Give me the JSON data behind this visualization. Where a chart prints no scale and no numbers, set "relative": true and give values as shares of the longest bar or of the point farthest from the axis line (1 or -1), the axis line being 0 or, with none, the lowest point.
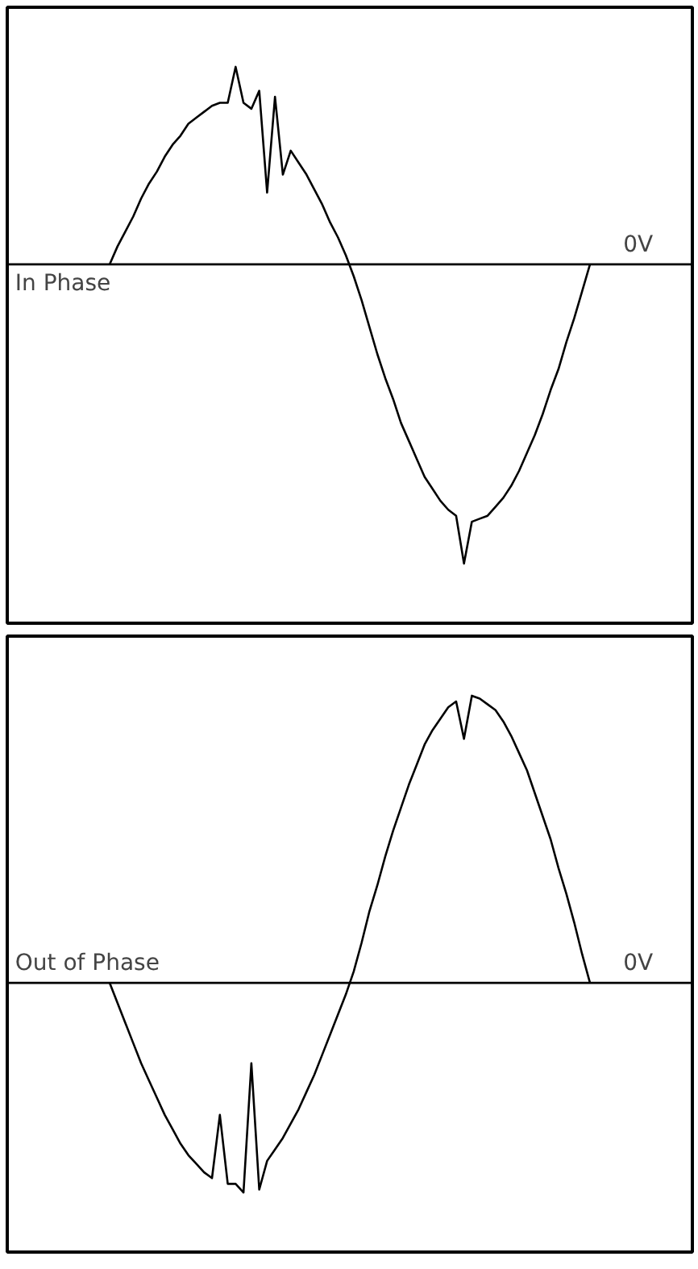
{
  "chart_data": [
    {
      "type": "line",
      "relative": true,
      "color": "#000000",
      "categories": [
        null,
        null,
        null,
        null,
        null,
        null,
        null,
        null,
        null,
        null,
        null,
        null,
        null,
        null,
        null,
        null,
        null,
        null,
        null,
        null,
        null,
        null,
        null,
        null,
        null,
        null,
        null,
        null,
        null,
        null,
        null,
        null,
        null,
        null,
        null,
        null,
        null,
        null,
        null,
        null,
        null,
        null,
        null,
        null,
        null,
        null,
        null,
        null,
        null,
        null,
        null,
        null,
        null,
        null,
        null,
        null,
        null,
        null,
        null,
        null,
        null,
        null,
        null,
        null,
        null,
        null,
        null,
        null,
        null,
        null,
        null,
        null,
        null,
        null,
        null,
        null,
        null,
        null,
        null,
        null,
        null,
        null,
        null
      ],
      "values": [
        null,
        null,
        null,
        null,
        null,
        null,
        null,
        null,
        null,
        null,
        0,
        0.06,
        0.11,
        0.16,
        0.22,
        0.27,
        0.31,
        0.36,
        0.4,
        0.43,
        0.47,
        0.49,
        0.51,
        0.53,
        0.54,
        0.54,
        0.66,
        0.54,
        0.52,
        0.58,
        0.24,
        0.56,
        0.3,
        0.38,
        0.34,
        0.3,
        0.25,
        0.2,
        0.14,
        0.09,
        0.03,
        -0.04,
        -0.12,
        -0.21,
        -0.3,
        -0.38,
        -0.45,
        -0.53,
        -0.59,
        -0.65,
        -0.71,
        -0.75,
        -0.79,
        -0.82,
        -0.84,
        -1.0,
        -0.86,
        -0.85,
        -0.84,
        -0.81,
        -0.78,
        -0.74,
        -0.69,
        -0.63,
        -0.57,
        -0.5,
        -0.42,
        -0.35,
        -0.26,
        -0.18,
        -0.09,
        0,
        null,
        null,
        null,
        null,
        null,
        null,
        null,
        null,
        null,
        null,
        null
      ],
      "ref_lines": [
        {
          "axis": "y",
          "value": 0,
          "label": "0V"
        }
      ],
      "annotations": [
        "In Phase"
      ]
    },
    {
      "type": "line",
      "relative": true,
      "color": "#000000",
      "categories": [
        null,
        null,
        null,
        null,
        null,
        null,
        null,
        null,
        null,
        null,
        null,
        null,
        null,
        null,
        null,
        null,
        null,
        null,
        null,
        null,
        null,
        null,
        null,
        null,
        null,
        null,
        null,
        null,
        null,
        null,
        null,
        null,
        null,
        null,
        null,
        null,
        null,
        null,
        null,
        null,
        null,
        null,
        null,
        null,
        null,
        null,
        null,
        null,
        null,
        null,
        null,
        null,
        null,
        null,
        null,
        null,
        null,
        null,
        null,
        null,
        null,
        null,
        null,
        null,
        null,
        null,
        null,
        null,
        null,
        null,
        null,
        null,
        null,
        null,
        null,
        null,
        null,
        null,
        null,
        null,
        null,
        null,
        null
      ],
      "values": [
        null,
        null,
        null,
        null,
        null,
        null,
        null,
        null,
        null,
        null,
        0,
        -0.07,
        -0.14,
        -0.21,
        -0.28,
        -0.34,
        -0.4,
        -0.46,
        -0.51,
        -0.56,
        -0.6,
        -0.63,
        -0.66,
        -0.68,
        -0.46,
        -0.7,
        -0.7,
        -0.73,
        -0.28,
        -0.72,
        -0.62,
        -0.58,
        -0.54,
        -0.49,
        -0.44,
        -0.38,
        -0.32,
        -0.25,
        -0.18,
        -0.11,
        -0.04,
        0.04,
        0.14,
        0.25,
        0.34,
        0.44,
        0.53,
        0.61,
        0.69,
        0.76,
        0.83,
        0.88,
        0.92,
        0.96,
        0.98,
        0.85,
        1.0,
        0.99,
        0.97,
        0.95,
        0.91,
        0.86,
        0.8,
        0.74,
        0.66,
        0.58,
        0.5,
        0.4,
        0.31,
        0.21,
        0.1,
        0,
        null,
        null,
        null,
        null,
        null,
        null,
        null,
        null,
        null,
        null,
        null
      ],
      "ref_lines": [
        {
          "axis": "y",
          "value": 0,
          "label": "0V"
        }
      ],
      "annotations": [
        "Out of Phase"
      ]
    }
  ]
}
